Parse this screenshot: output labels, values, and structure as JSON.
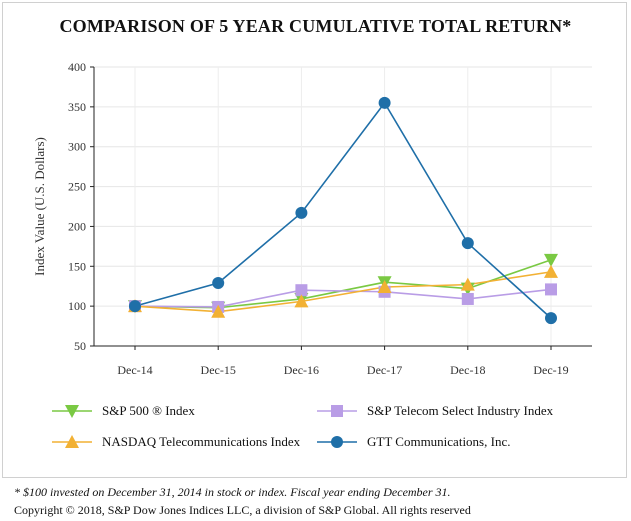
{
  "chart_data": {
    "type": "line",
    "title": "COMPARISON OF 5 YEAR CUMULATIVE TOTAL RETURN*",
    "ylabel": "Index Value (U.S. Dollars)",
    "xlabel": "",
    "categories": [
      "Dec-14",
      "Dec-15",
      "Dec-16",
      "Dec-17",
      "Dec-18",
      "Dec-19"
    ],
    "ylim": [
      50,
      400
    ],
    "yticks": [
      50,
      100,
      150,
      200,
      250,
      300,
      350,
      400
    ],
    "grid": true,
    "legend_position": "bottom",
    "series": [
      {
        "name": "S&P 500 ® Index",
        "color": "#7ac943",
        "marker": "triangle-down",
        "values": [
          100,
          98,
          109,
          130,
          122,
          158
        ]
      },
      {
        "name": "S&P Telecom Select Industry Index",
        "color": "#b99de6",
        "marker": "square",
        "values": [
          100,
          99,
          120,
          118,
          109,
          121
        ]
      },
      {
        "name": "NASDAQ Telecommunications Index",
        "color": "#f2b134",
        "marker": "triangle-up",
        "values": [
          100,
          93,
          106,
          124,
          127,
          143
        ]
      },
      {
        "name": "GTT Communications, Inc.",
        "color": "#1f6fa8",
        "marker": "circle",
        "values": [
          100,
          129,
          217,
          355,
          179,
          85
        ]
      }
    ]
  },
  "footnote": "* $100 invested on December 31, 2014 in stock or index. Fiscal year ending December 31.",
  "copyright": "Copyright © 2018, S&P Dow Jones Indices LLC, a division of S&P Global. All rights reserved"
}
